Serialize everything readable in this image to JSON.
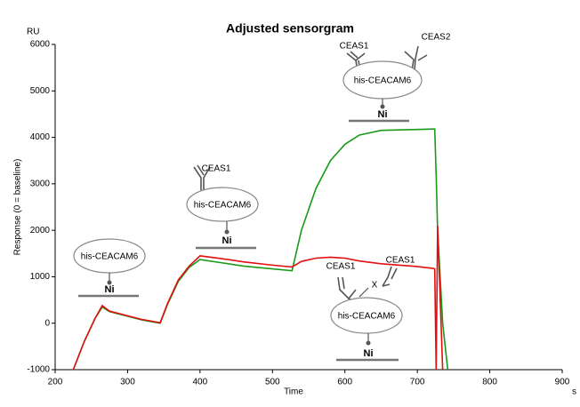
{
  "chart_data": {
    "type": "line",
    "title": "Adjusted sensorgram",
    "y_unit": "RU",
    "ylabel": "Response (0 = baseline)",
    "xlabel": "Time",
    "x_unit": "s",
    "x": [
      225,
      240,
      255,
      265,
      275,
      300,
      320,
      345,
      355,
      370,
      385,
      400,
      430,
      460,
      500,
      527,
      540,
      560,
      580,
      600,
      620,
      650,
      700,
      722,
      724,
      726,
      728,
      735,
      742
    ],
    "series": [
      {
        "color": "#1a9a1a",
        "values": [
          -1000,
          -400,
          100,
          350,
          250,
          150,
          70,
          0,
          400,
          900,
          1200,
          1370,
          1300,
          1230,
          1170,
          1130,
          2000,
          2900,
          3500,
          3850,
          4050,
          4150,
          4170,
          4180,
          4180,
          3200,
          2000,
          0,
          -1000
        ]
      },
      {
        "color": "#e01010",
        "values": [
          -1000,
          -400,
          100,
          380,
          260,
          160,
          80,
          10,
          420,
          930,
          1230,
          1450,
          1390,
          1320,
          1250,
          1210,
          1330,
          1400,
          1420,
          1400,
          1340,
          1280,
          1220,
          1180,
          1170,
          -1000,
          2100,
          -1000,
          null
        ]
      }
    ],
    "xlim": [
      200,
      900
    ],
    "xticks": [
      200,
      300,
      400,
      500,
      600,
      700,
      800,
      900
    ],
    "ylim": [
      -1000,
      6000
    ],
    "yticks": [
      -1000,
      0,
      1000,
      2000,
      3000,
      4000,
      5000,
      6000
    ],
    "annotations": [
      {
        "protein": "his-CEACAM6",
        "surface": "Ni"
      },
      {
        "antibodies": [
          "CEAS1"
        ],
        "protein": "his-CEACAM6",
        "surface": "Ni"
      },
      {
        "antibodies": [
          "CEAS1",
          "CEAS2"
        ],
        "protein": "his-CEACAM6",
        "surface": "Ni"
      },
      {
        "antibodies": [
          "CEAS1",
          "CEAS1"
        ],
        "blocked": "X",
        "protein": "his-CEACAM6",
        "surface": "Ni"
      }
    ]
  }
}
